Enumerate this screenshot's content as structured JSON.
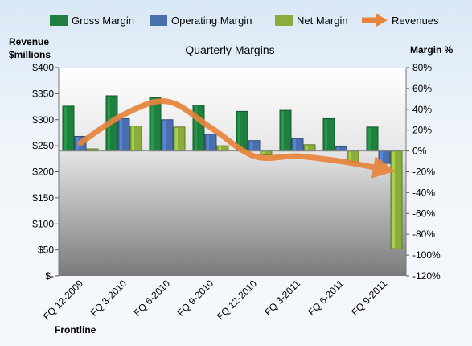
{
  "chart_data": {
    "type": "bar",
    "title": "Quarterly Margins",
    "footer_label": "Frontline",
    "left_axis": {
      "title_line1": "Revenue",
      "title_line2": "$millions",
      "range": [
        0,
        400
      ],
      "ticks": [
        "$-",
        "$50",
        "$100",
        "$150",
        "$200",
        "$250",
        "$300",
        "$350",
        "$400"
      ]
    },
    "right_axis": {
      "title": "Margin %",
      "range": [
        -120,
        80
      ],
      "ticks": [
        "-120%",
        "-100%",
        "-80%",
        "-60%",
        "-40%",
        "-20%",
        "0%",
        "20%",
        "40%",
        "60%",
        "80%"
      ]
    },
    "categories": [
      "FQ 12-2009",
      "FQ 3-2010",
      "FQ 6-2010",
      "FQ 9-2010",
      "FQ 12-2010",
      "FQ 3-2011",
      "FQ 6-2011",
      "FQ 9-2011"
    ],
    "series": [
      {
        "name": "Gross Margin",
        "axis": "right",
        "color": "#1f7f3f",
        "values": [
          43,
          53,
          51,
          44,
          38,
          39,
          31,
          23
        ]
      },
      {
        "name": "Operating Margin",
        "axis": "right",
        "color": "#4a6fae",
        "values": [
          14,
          31,
          30,
          16,
          10,
          12,
          4,
          -12
        ]
      },
      {
        "name": "Net Margin",
        "axis": "right",
        "color": "#8aad3e",
        "values": [
          2,
          24,
          23,
          5,
          -4,
          6,
          -11,
          -94
        ]
      },
      {
        "name": "Revenues",
        "axis": "left",
        "color": "#e8843c",
        "type": "line",
        "values": [
          255,
          310,
          335,
          285,
          230,
          230,
          220,
          205
        ]
      }
    ],
    "legend_position": "top",
    "grid": false
  }
}
